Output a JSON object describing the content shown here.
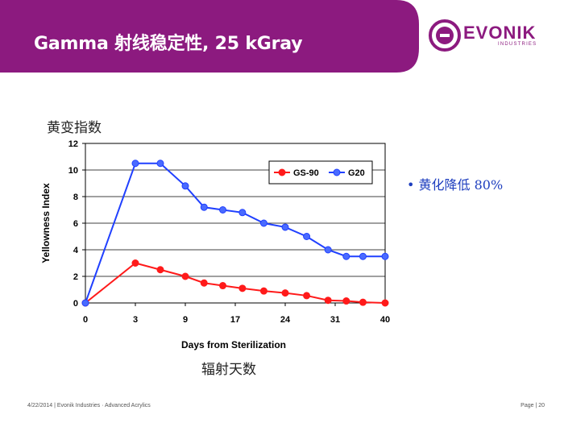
{
  "slide": {
    "title": "Gamma 射线稳定性, 25 kGray",
    "cn_ylabel": "黄变指数",
    "cn_xlabel": "辐射天数",
    "bullet": "• 黄化降低 80%",
    "footer_left": "4/22/2014 | Evonik Industries · Advanced Acrylics",
    "footer_right": "Page | 20"
  },
  "logo": {
    "word": "EVONIK",
    "sub": "INDUSTRIES",
    "color": "#8c1a7f"
  },
  "colors": {
    "banner": "#8c1a7f",
    "series_red": "#ff1a1a",
    "series_blue": "#2040ff"
  },
  "chart_data": {
    "type": "line",
    "xlabel": "Days from Sterilization",
    "ylabel": "Yellowness Index",
    "xlim": [
      0,
      40
    ],
    "ylim": [
      0,
      12
    ],
    "x_ticks": [
      0,
      3,
      9,
      17,
      24,
      31,
      40
    ],
    "y_ticks": [
      0,
      2,
      4,
      6,
      8,
      10,
      12
    ],
    "grid": "horizontal",
    "legend": "top-right",
    "series": [
      {
        "name": "GS-90",
        "color": "#ff1a1a",
        "x": [
          0,
          3,
          6,
          9,
          12,
          15,
          18,
          21,
          24,
          27,
          30,
          33,
          36,
          40
        ],
        "values": [
          0,
          3.0,
          2.5,
          2.0,
          1.5,
          1.3,
          1.1,
          0.9,
          0.75,
          0.55,
          0.2,
          0.15,
          0.05,
          0.0
        ]
      },
      {
        "name": "G20",
        "color": "#2040ff",
        "x": [
          0,
          3,
          6,
          9,
          12,
          15,
          18,
          21,
          24,
          27,
          30,
          33,
          36,
          40
        ],
        "values": [
          0,
          10.5,
          10.5,
          8.8,
          7.2,
          7.0,
          6.8,
          6.0,
          5.7,
          5.0,
          4.0,
          3.5,
          3.5,
          3.5
        ]
      }
    ]
  }
}
